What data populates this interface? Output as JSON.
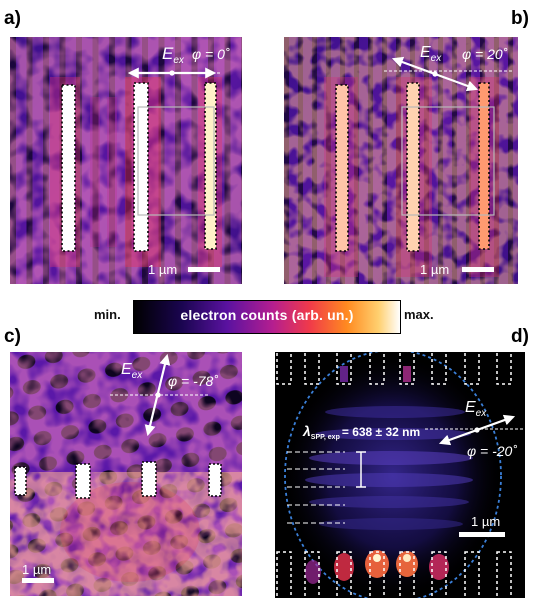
{
  "panels": {
    "a": {
      "label": "a)",
      "field": "E",
      "field_sub": "ex",
      "angle": "φ = 0˚",
      "scalebar": "1 µm"
    },
    "b": {
      "label": "b)",
      "field": "E",
      "field_sub": "ex",
      "angle": "φ = 20˚",
      "scalebar": "1 µm"
    },
    "c": {
      "label": "c)",
      "field": "E",
      "field_sub": "ex",
      "angle": "φ = -78˚",
      "scalebar": "1 µm"
    },
    "d": {
      "label": "d)",
      "field": "E",
      "field_sub": "ex",
      "angle": "φ = -20˚",
      "scalebar": "1 µm",
      "lambda_symbol": "λ",
      "lambda_sub": "SPP, exp",
      "lambda_value": "= 638 ± 32 nm"
    }
  },
  "colorbar": {
    "min": "min.",
    "max": "max.",
    "label": "electron counts (arb. un.)"
  },
  "colors": {
    "background": "#000000",
    "dark_purple": "#2a0a6a",
    "purple": "#6a1aa8",
    "magenta": "#c02890",
    "red": "#f04040",
    "orange": "#ff9030",
    "white": "#ffffff",
    "ellipse": "#3a7fd8"
  }
}
